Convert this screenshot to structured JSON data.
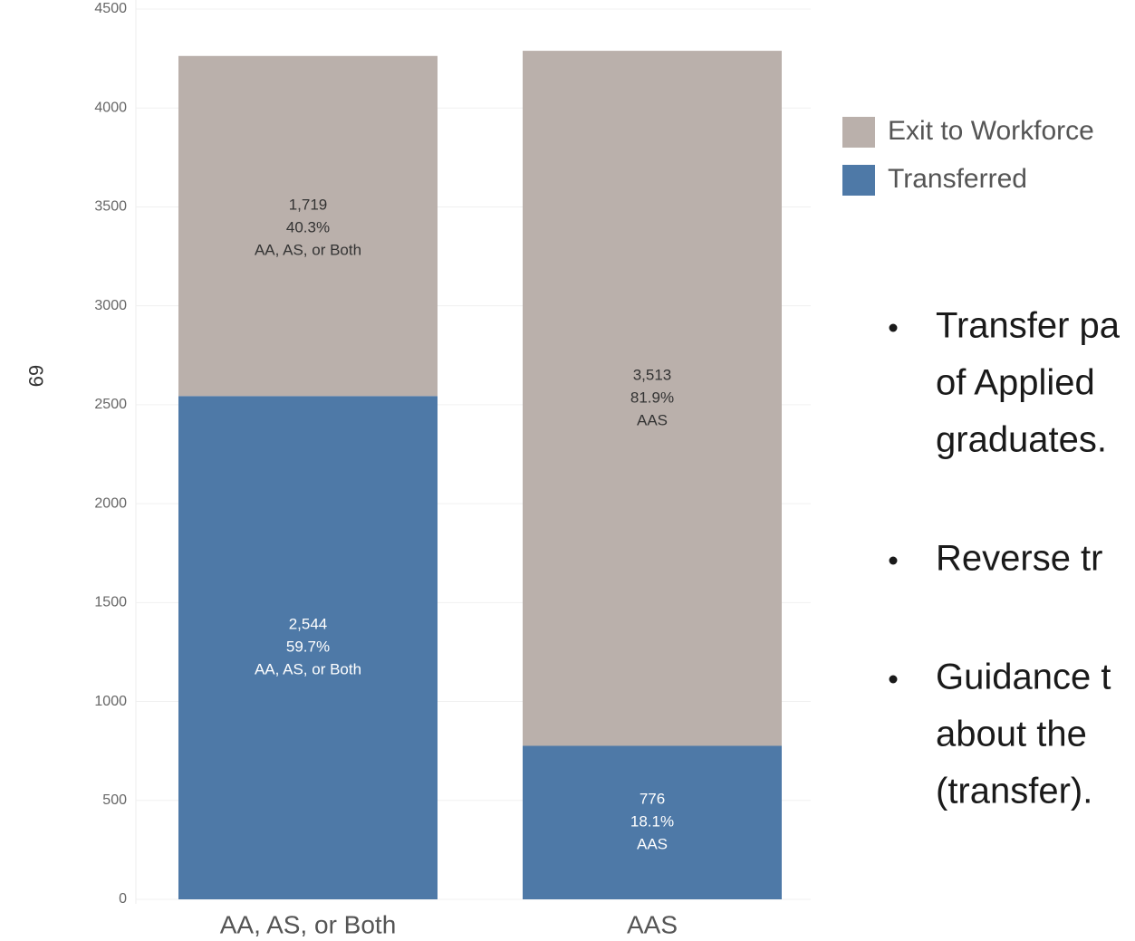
{
  "page_number": "69",
  "chart_data": {
    "type": "bar",
    "stacked": true,
    "categories": [
      "AA, AS, or Both",
      "AAS"
    ],
    "series": [
      {
        "name": "Transferred",
        "color": "#4e79a7",
        "values": [
          2544,
          776
        ],
        "value_labels": [
          "2,544",
          "776"
        ],
        "shares": [
          59.7,
          18.1
        ],
        "share_labels": [
          "59.7%",
          "18.1%"
        ]
      },
      {
        "name": "Exit to Workforce",
        "color": "#bab0ab",
        "values": [
          1719,
          3513
        ],
        "value_labels": [
          "1,719",
          "3,513"
        ],
        "shares": [
          40.3,
          81.9
        ],
        "share_labels": [
          "40.3%",
          "81.9%"
        ]
      }
    ],
    "ylim": [
      0,
      4500
    ],
    "yticks": [
      0,
      500,
      1000,
      1500,
      2000,
      2500,
      3000,
      3500,
      4000,
      4500
    ],
    "grid": true,
    "legend": "right"
  },
  "bullets": [
    [
      "Transfer pa",
      "of Applied",
      "graduates."
    ],
    [
      "Reverse tr"
    ],
    [
      "Guidance t",
      "about the",
      "(transfer)."
    ]
  ]
}
